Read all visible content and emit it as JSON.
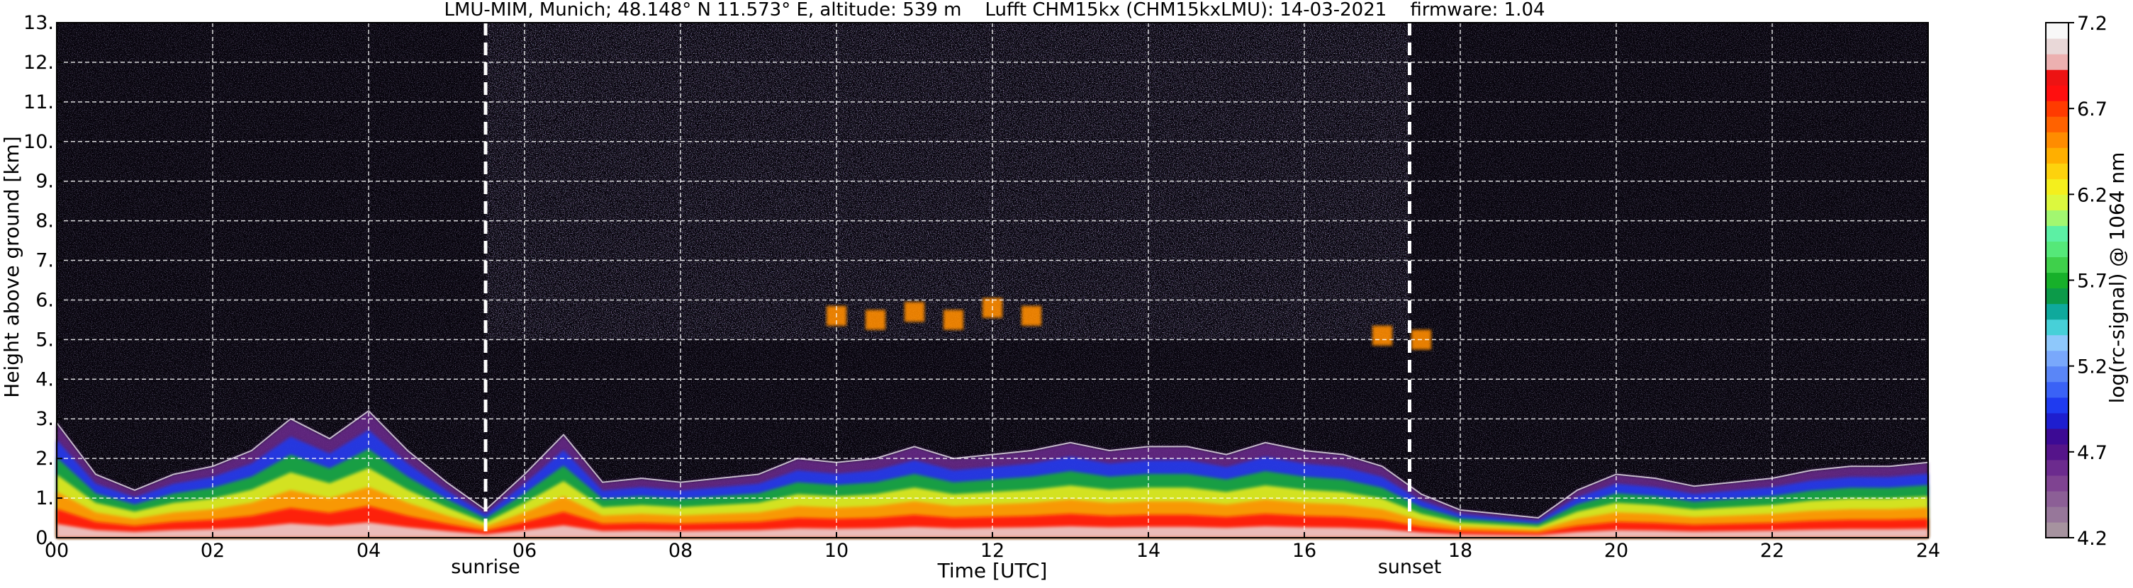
{
  "chart_data": {
    "type": "heatmap",
    "title": "LMU-MIM, Munich; 48.148° N 11.573° E, altitude: 539 m    Lufft CHM15kx (CHM15kxLMU): 14-03-2021    firmware: 1.04",
    "xlabel": "Time [UTC]",
    "ylabel": "Height above ground [km]",
    "xlim": [
      0,
      24
    ],
    "ylim": [
      0,
      13
    ],
    "x_ticks": [
      0,
      2,
      4,
      6,
      8,
      10,
      12,
      14,
      16,
      18,
      20,
      22,
      24
    ],
    "x_tick_labels": [
      "00",
      "02",
      "04",
      "06",
      "08",
      "10",
      "12",
      "14",
      "16",
      "18",
      "20",
      "22",
      "24"
    ],
    "y_ticks": [
      0,
      1,
      2,
      3,
      4,
      5,
      6,
      7,
      8,
      9,
      10,
      11,
      12,
      13
    ],
    "y_tick_labels": [
      "0.",
      "1.",
      "2.",
      "3.",
      "4.",
      "5.",
      "6.",
      "7.",
      "8.",
      "9.",
      "10.",
      "11.",
      "12.",
      "13."
    ],
    "grid": true,
    "colorbar": {
      "label": "log(rc-signal) @ 1064 nm",
      "min": 4.2,
      "max": 7.2,
      "ticks": [
        4.2,
        4.7,
        5.2,
        5.7,
        6.2,
        6.7,
        7.2
      ],
      "tick_labels": [
        "4.2",
        "4.7",
        "5.2",
        "5.7",
        "6.2",
        "6.7",
        "7.2"
      ],
      "colors": [
        "#a6939f",
        "#97779a",
        "#8c5f96",
        "#7f4391",
        "#6c2b8e",
        "#55148a",
        "#3c0a94",
        "#1e1ecf",
        "#1f3bf0",
        "#3a62f6",
        "#5a86f7",
        "#79a8fb",
        "#8ec8fb",
        "#47d0d8",
        "#0fa99c",
        "#0c9a49",
        "#17b02a",
        "#3fd04b",
        "#55e879",
        "#5cf0a4",
        "#a2f770",
        "#dcf83e",
        "#f4ef1d",
        "#fdd20d",
        "#ffaf00",
        "#ff8c00",
        "#ff6200",
        "#ff3b00",
        "#ff0f0f",
        "#ed1313",
        "#ecb0b0",
        "#e9d8d8",
        "#f8f8f8"
      ]
    },
    "annotations": [
      {
        "text": "sunrise",
        "x": 5.5
      },
      {
        "text": "sunset",
        "x": 17.35
      }
    ],
    "series": [
      {
        "name": "mixing-layer-top",
        "x": [
          0,
          0.5,
          1,
          1.5,
          2,
          2.5,
          3,
          3.5,
          4,
          4.5,
          5,
          5.5,
          6,
          6.5,
          7,
          7.5,
          8,
          8.5,
          9,
          9.5,
          10,
          10.5,
          11,
          11.5,
          12,
          12.5,
          13,
          13.5,
          14,
          14.5,
          15,
          15.5,
          16,
          16.5,
          17,
          17.5,
          18,
          18.5,
          19,
          19.5,
          20,
          20.5,
          21,
          21.5,
          22,
          22.5,
          23,
          23.5,
          24
        ],
        "values": [
          2.9,
          1.6,
          1.2,
          1.6,
          1.8,
          2.2,
          3.0,
          2.5,
          3.2,
          2.2,
          1.4,
          0.7,
          1.6,
          2.6,
          1.4,
          1.5,
          1.4,
          1.5,
          1.6,
          2.0,
          1.9,
          2.0,
          2.3,
          2.0,
          2.1,
          2.2,
          2.4,
          2.2,
          2.3,
          2.3,
          2.1,
          2.4,
          2.2,
          2.1,
          1.8,
          1.1,
          0.7,
          0.6,
          0.5,
          1.2,
          1.6,
          1.5,
          1.3,
          1.4,
          1.5,
          1.7,
          1.8,
          1.8,
          1.9
        ]
      },
      {
        "name": "cloud-layer-5.5km",
        "x": [
          10,
          10.5,
          11,
          11.5,
          12,
          12.5,
          17,
          17.5
        ],
        "values": [
          5.6,
          5.5,
          5.7,
          5.5,
          5.8,
          5.6,
          5.1,
          5.0
        ]
      }
    ]
  }
}
